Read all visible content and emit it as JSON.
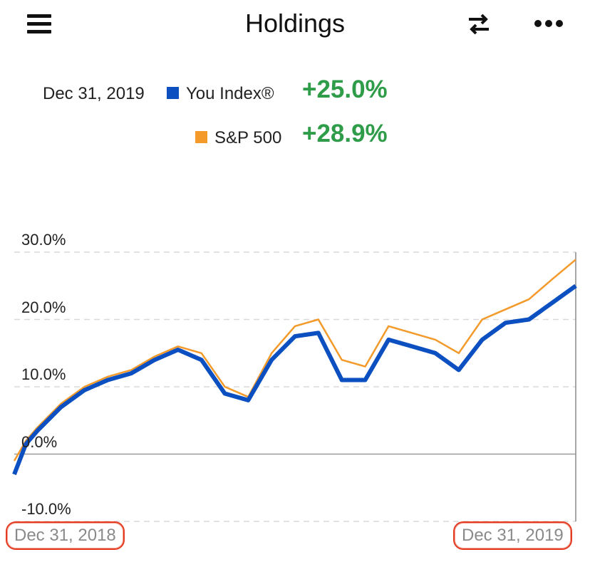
{
  "header": {
    "title": "Holdings",
    "menu_icon": "hamburger-menu-icon",
    "swap_icon": "swap-arrows-icon",
    "more_icon": "more-horizontal-icon"
  },
  "legend": {
    "date": "Dec 31, 2019",
    "series": [
      {
        "name": "You Index®",
        "color": "#0b4fc1",
        "change": "+25.0%"
      },
      {
        "name": "S&P 500",
        "color": "#f39a2b",
        "change": "+28.9%"
      }
    ]
  },
  "colors": {
    "positive": "#2e9c48",
    "highlight_outline": "#e43b22"
  },
  "chart_data": {
    "type": "line",
    "title": "",
    "xlabel": "",
    "ylabel": "",
    "x_start": "Dec 31, 2018",
    "x_end": "Dec 31, 2019",
    "ylim": [
      -10,
      30
    ],
    "yticks": [
      "30.0%",
      "20.0%",
      "10.0%",
      "0.0%",
      "-10.0%"
    ],
    "ytick_values": [
      30,
      20,
      10,
      0,
      -10
    ],
    "grid": true,
    "x_month_index": [
      0,
      0.25,
      0.5,
      1,
      1.5,
      2,
      2.5,
      3,
      3.5,
      4,
      4.5,
      5,
      5.5,
      6,
      6.5,
      7,
      7.5,
      8,
      8.5,
      9,
      9.5,
      10,
      10.5,
      11,
      11.5,
      12
    ],
    "series": [
      {
        "name": "S&P 500",
        "color": "#f39a2b",
        "values": [
          -1,
          2,
          4,
          7.5,
          10,
          11.5,
          12.5,
          14.5,
          16,
          15,
          10,
          8.5,
          15,
          19,
          20,
          14,
          13,
          19,
          18,
          17,
          15,
          20,
          21.5,
          23,
          26,
          28.9
        ]
      },
      {
        "name": "You Index®",
        "color": "#0b4fc1",
        "values": [
          -3,
          1.5,
          3.5,
          7,
          9.5,
          11,
          12,
          14,
          15.5,
          14,
          9,
          8,
          14,
          17.5,
          18,
          11,
          11,
          17,
          16,
          15,
          12.5,
          17,
          19.5,
          20,
          22.5,
          25
        ]
      }
    ]
  },
  "footer": {
    "start_date": "Dec 31, 2018",
    "end_date": "Dec 31, 2019"
  }
}
